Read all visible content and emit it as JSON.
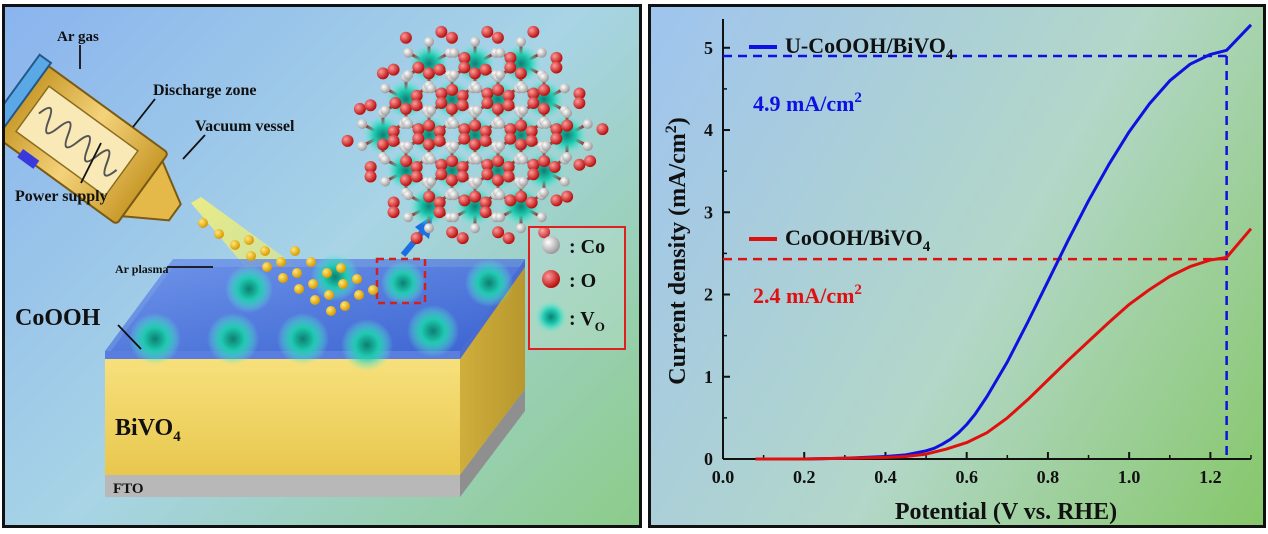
{
  "schematic": {
    "labels": {
      "ar_gas": "Ar gas",
      "discharge_zone": "Discharge zone",
      "vacuum_vessel": "Vacuum vessel",
      "power_supply": "Power supply",
      "ar_plasma": "Ar plasma",
      "cooh": "CoOOH",
      "bivo4_base": "BiVO",
      "bivo4_sub": "4",
      "fto": "FTO"
    },
    "legend": {
      "co": ": Co",
      "o": ": O",
      "vo_base": ": V",
      "vo_sub": "O"
    },
    "colors": {
      "co_atom": "#f0f0f0",
      "o_atom": "#d42020",
      "vacancy": "#1fc9b0",
      "bivo4_layer": "#f2d66a",
      "fto_layer": "#b8b8b8"
    }
  },
  "chart_data": {
    "type": "line",
    "xlabel": "Potential (V vs. RHE)",
    "ylabel_base": "Current density (mA/cm",
    "ylabel_sup": "2",
    "ylabel_end": ")",
    "xlim": [
      0.0,
      1.3
    ],
    "ylim": [
      0,
      5.35
    ],
    "xticks": [
      0.0,
      0.2,
      0.4,
      0.6,
      0.8,
      1.0,
      1.2
    ],
    "xtick_labels": [
      "0.0",
      "0.2",
      "0.4",
      "0.6",
      "0.8",
      "1.0",
      "1.2"
    ],
    "yticks": [
      0,
      1,
      2,
      3,
      4,
      5
    ],
    "ytick_labels": [
      "0",
      "1",
      "2",
      "3",
      "4",
      "5"
    ],
    "series": [
      {
        "name": "U-CoOOH/BiVO",
        "name_sub": "4",
        "color": "#1010e0",
        "x": [
          0.08,
          0.2,
          0.3,
          0.4,
          0.45,
          0.5,
          0.52,
          0.54,
          0.56,
          0.58,
          0.6,
          0.62,
          0.65,
          0.7,
          0.75,
          0.8,
          0.85,
          0.9,
          0.95,
          1.0,
          1.05,
          1.1,
          1.15,
          1.2,
          1.24,
          1.3
        ],
        "y": [
          0.0,
          0.0,
          0.01,
          0.03,
          0.05,
          0.1,
          0.13,
          0.18,
          0.24,
          0.32,
          0.42,
          0.54,
          0.76,
          1.18,
          1.66,
          2.16,
          2.66,
          3.14,
          3.58,
          3.98,
          4.32,
          4.6,
          4.8,
          4.92,
          4.97,
          5.28
        ]
      },
      {
        "name": "CoOOH/BiVO",
        "name_sub": "4",
        "color": "#e01010",
        "x": [
          0.08,
          0.2,
          0.3,
          0.4,
          0.45,
          0.5,
          0.55,
          0.6,
          0.65,
          0.7,
          0.75,
          0.8,
          0.85,
          0.9,
          0.95,
          1.0,
          1.05,
          1.1,
          1.15,
          1.2,
          1.24,
          1.3
        ],
        "y": [
          0.0,
          0.0,
          0.01,
          0.02,
          0.03,
          0.06,
          0.12,
          0.2,
          0.32,
          0.5,
          0.72,
          0.96,
          1.2,
          1.43,
          1.66,
          1.88,
          2.06,
          2.22,
          2.34,
          2.42,
          2.45,
          2.8
        ]
      }
    ],
    "annotations": [
      {
        "text": "4.9 mA/cm",
        "sup": "2",
        "x": 1.24,
        "y": 4.9,
        "color": "#1010e0"
      },
      {
        "text": "2.4 mA/cm",
        "sup": "2",
        "x": 1.24,
        "y": 2.43,
        "color": "#e01010"
      }
    ],
    "grid": false,
    "legend_position": "top-left"
  }
}
